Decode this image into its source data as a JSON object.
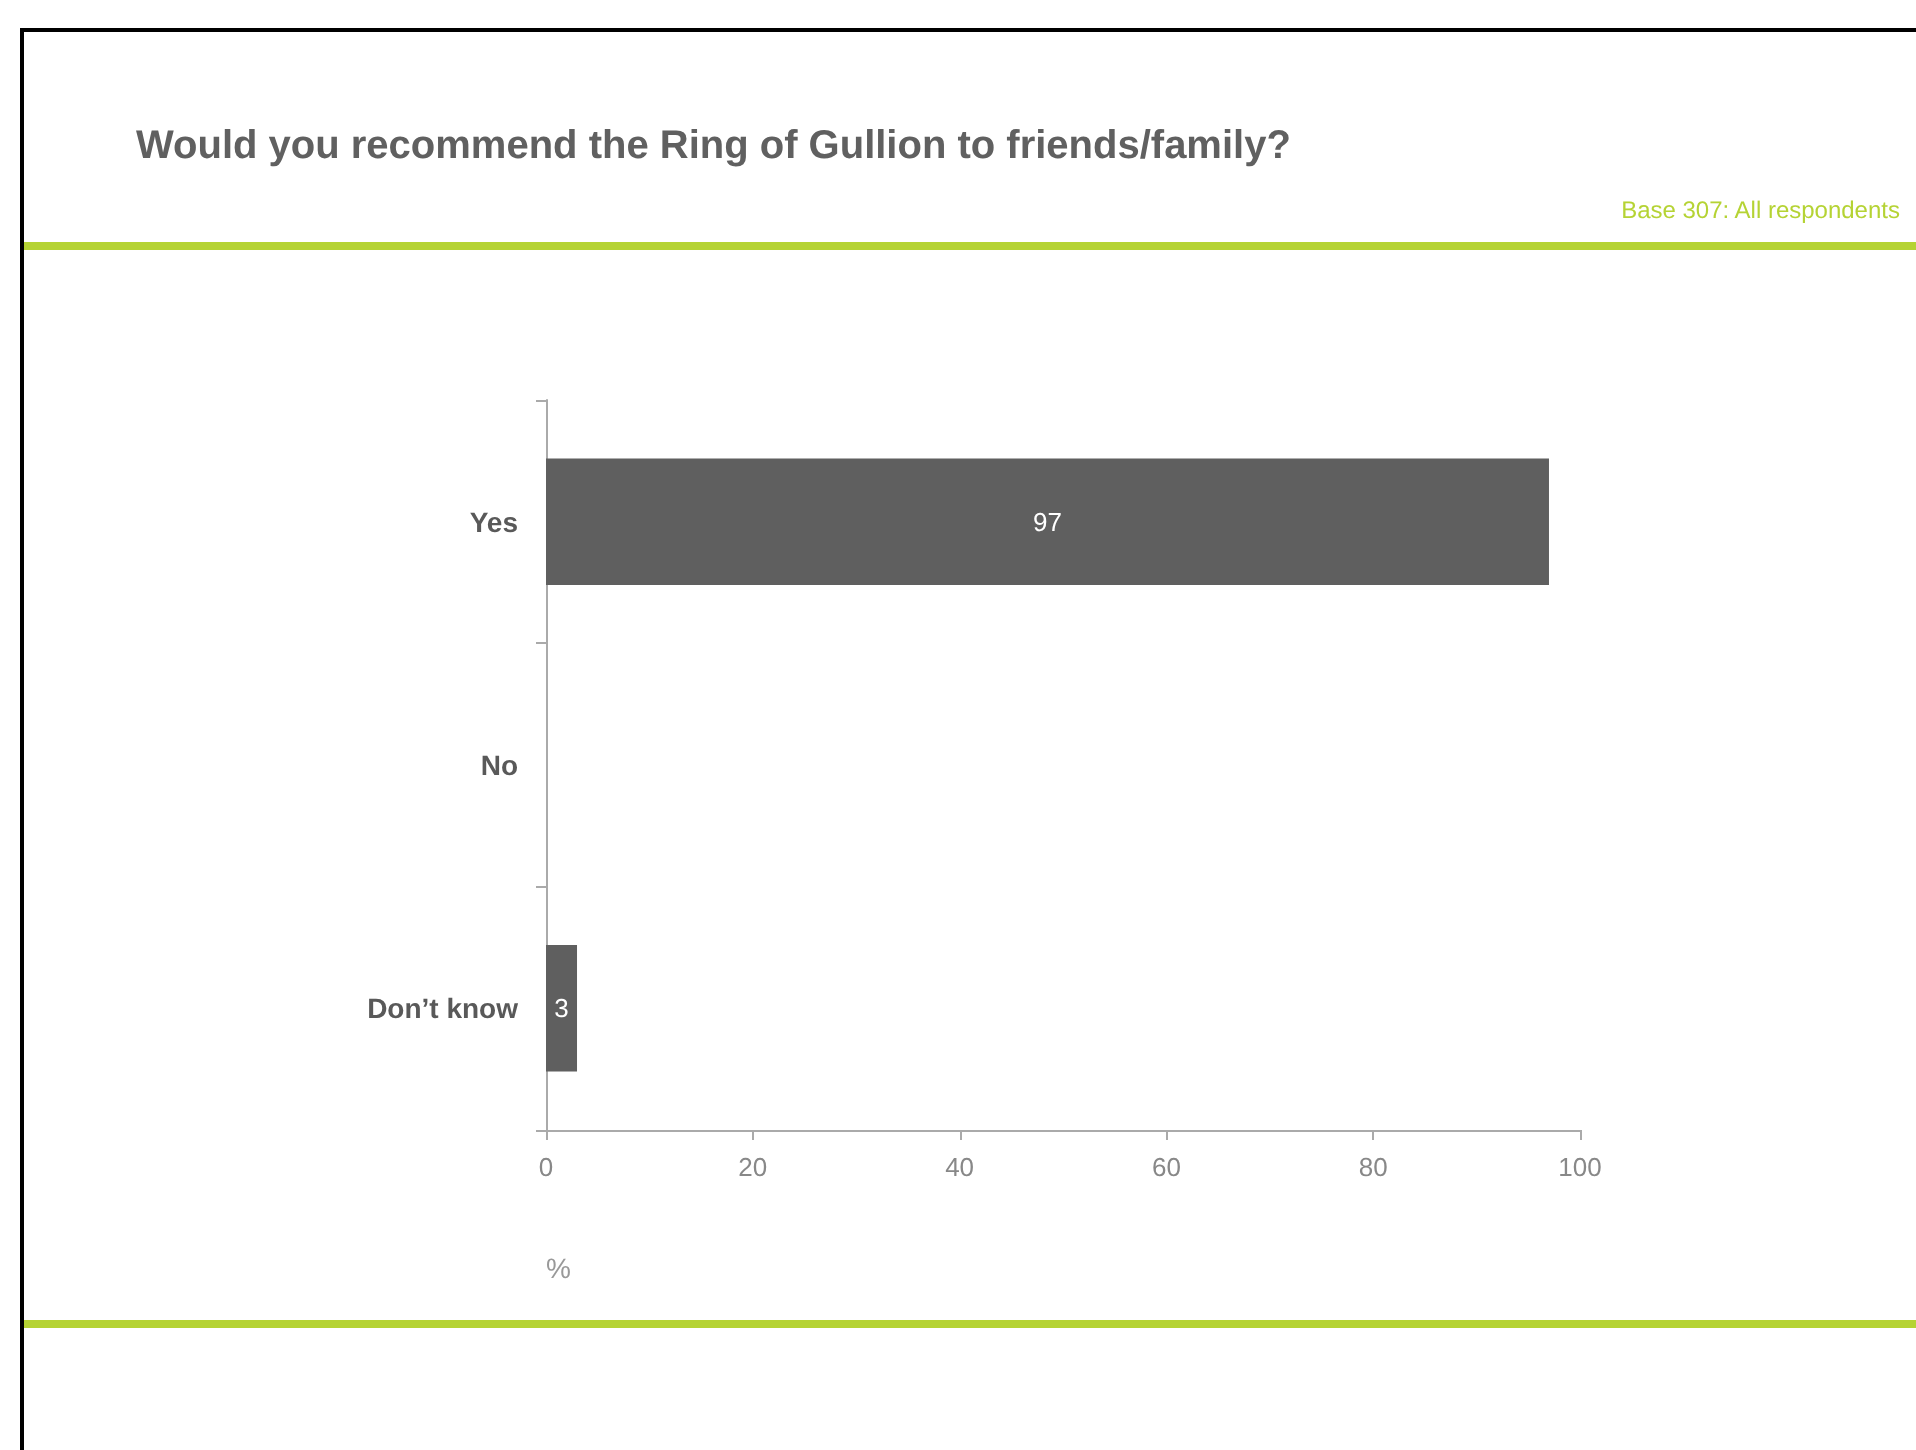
{
  "chart_data": {
    "type": "bar",
    "orientation": "horizontal",
    "title": "Would you recommend the Ring of Gullion to friends/family?",
    "subtitle": "Base 307: All respondents",
    "xlabel": "%",
    "categories": [
      "Yes",
      "No",
      "Don’t know"
    ],
    "values": [
      97,
      0,
      3
    ],
    "value_labels": [
      "97",
      null,
      "3"
    ],
    "color": "#5f5f5f",
    "xlim": [
      0,
      100
    ],
    "xticks": [
      0,
      20,
      40,
      60,
      80,
      100
    ],
    "grid": false
  }
}
